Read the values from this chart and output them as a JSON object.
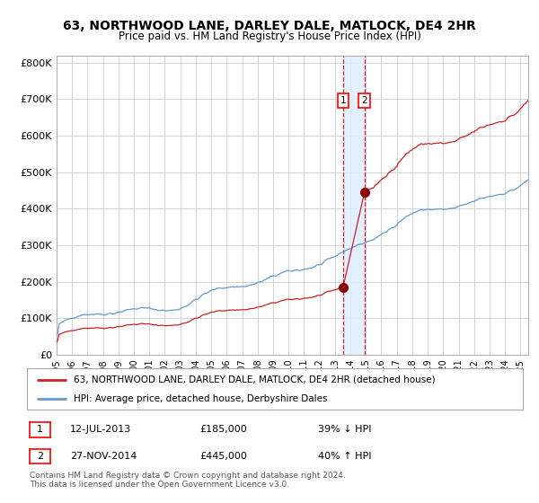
{
  "title": "63, NORTHWOOD LANE, DARLEY DALE, MATLOCK, DE4 2HR",
  "subtitle": "Price paid vs. HM Land Registry's House Price Index (HPI)",
  "legend_line1": "63, NORTHWOOD LANE, DARLEY DALE, MATLOCK, DE4 2HR (detached house)",
  "legend_line2": "HPI: Average price, detached house, Derbyshire Dales",
  "transaction1_date": "12-JUL-2013",
  "transaction1_price": 185000,
  "transaction1_note": "39% ↓ HPI",
  "transaction2_date": "27-NOV-2014",
  "transaction2_price": 445000,
  "transaction2_note": "40% ↑ HPI",
  "hpi_color": "#6699cc",
  "price_color": "#cc2222",
  "marker_color": "#880000",
  "vline_color": "#cc2222",
  "shade_color": "#ddeeff",
  "background_color": "#ffffff",
  "grid_color": "#cccccc",
  "ylim": [
    0,
    820000
  ],
  "yticks": [
    0,
    100000,
    200000,
    300000,
    400000,
    500000,
    600000,
    700000,
    800000
  ],
  "ytick_labels": [
    "£0",
    "£100K",
    "£200K",
    "£300K",
    "£400K",
    "£500K",
    "£600K",
    "£700K",
    "£800K"
  ],
  "copyright": "Contains HM Land Registry data © Crown copyright and database right 2024.\nThis data is licensed under the Open Government Licence v3.0.",
  "transaction1_x": 2013.53,
  "transaction2_x": 2014.91,
  "start_year": 1995,
  "end_year": 2026
}
